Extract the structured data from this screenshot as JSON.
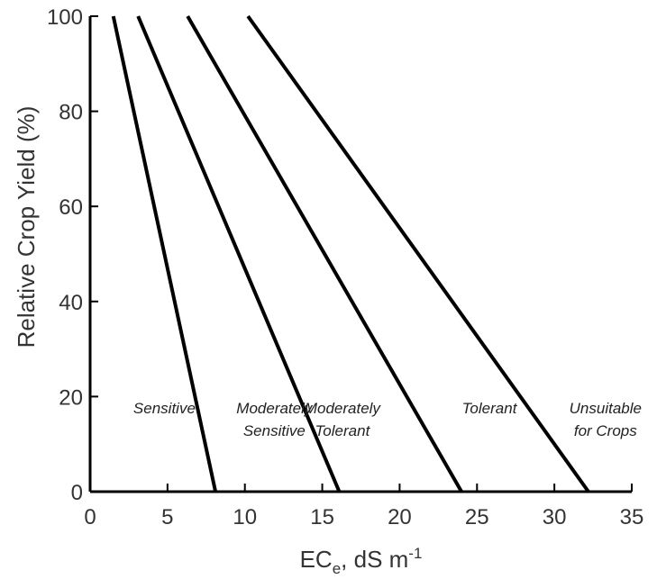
{
  "chart_data": {
    "type": "line",
    "xlabel_main": "EC",
    "xlabel_sub": "e",
    "xlabel_rest": ", dS m",
    "xlabel_sup": "-1",
    "ylabel": "Relative Crop Yield (%)",
    "xlim": [
      0,
      35
    ],
    "ylim": [
      0,
      100
    ],
    "xticks": [
      "0",
      "5",
      "10",
      "15",
      "20",
      "25",
      "30",
      "35"
    ],
    "yticks": [
      "0",
      "20",
      "40",
      "60",
      "80",
      "100"
    ],
    "grid": false,
    "line_color": "#000000",
    "series": [
      {
        "x": [
          1.5,
          8.1
        ],
        "y": [
          100,
          0
        ]
      },
      {
        "x": [
          3.1,
          16.1
        ],
        "y": [
          100,
          0
        ]
      },
      {
        "x": [
          6.3,
          24.0
        ],
        "y": [
          100,
          0
        ]
      },
      {
        "x": [
          10.2,
          32.2
        ],
        "y": [
          100,
          0
        ]
      }
    ],
    "regions": [
      {
        "lines": [
          "Sensitive"
        ],
        "x": 4.8,
        "y": 16.5
      },
      {
        "lines": [
          "Moderately",
          "Sensitive"
        ],
        "x": 11.9,
        "y": 16.5
      },
      {
        "lines": [
          "Moderately",
          "Tolerant"
        ],
        "x": 16.3,
        "y": 16.5
      },
      {
        "lines": [
          "Tolerant"
        ],
        "x": 25.8,
        "y": 16.5
      },
      {
        "lines": [
          "Unsuitable",
          "for Crops"
        ],
        "x": 33.3,
        "y": 16.5
      }
    ]
  }
}
